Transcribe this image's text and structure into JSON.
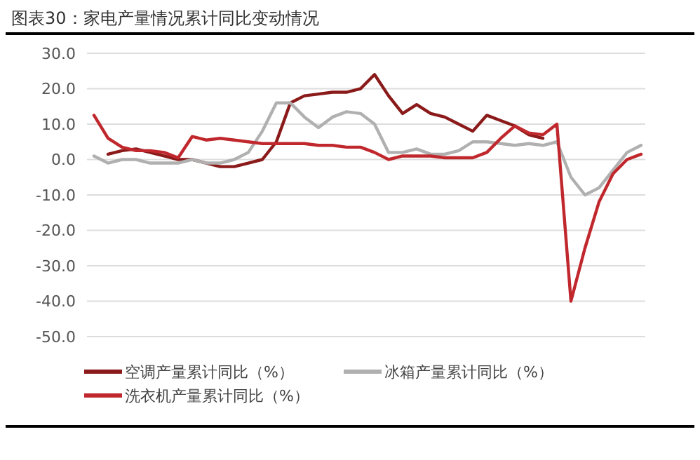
{
  "chart_data": {
    "type": "line",
    "title": "图表30：家电产量情况累计同比变动情况",
    "categories": [
      null,
      null,
      null,
      null,
      null,
      null,
      null,
      null,
      null,
      null,
      null,
      null,
      null,
      null,
      null,
      null,
      null,
      null,
      null,
      null,
      null,
      null,
      null,
      null,
      null,
      null,
      null,
      null,
      null,
      null,
      null,
      null,
      null,
      null,
      null,
      null,
      null,
      null,
      null,
      null
    ],
    "series": [
      {
        "name": "空调产量累计同比（%）",
        "color": "#8b1a1a",
        "values": [
          null,
          1.5,
          2.5,
          3,
          2,
          1,
          0,
          0,
          -1,
          -2,
          -2,
          -1,
          0,
          5,
          16,
          18,
          18.5,
          19,
          19,
          20,
          24,
          18,
          13,
          15.5,
          13,
          12,
          10,
          8,
          12.5,
          11,
          9.5,
          7,
          6,
          null,
          null,
          null,
          null,
          null,
          null,
          null
        ]
      },
      {
        "name": "冰箱产量累计同比（%）",
        "color": "#b0b0b0",
        "values": [
          1,
          -1,
          0,
          0,
          -1,
          -1,
          -1,
          0,
          -1,
          -1,
          0,
          2,
          8,
          16,
          16,
          12,
          9,
          12,
          13.5,
          13,
          10,
          2,
          2,
          3,
          1.5,
          1.5,
          2.5,
          5,
          5,
          4.5,
          4,
          4.5,
          4,
          5,
          -5,
          -10,
          -8,
          -3,
          2,
          4
        ]
      },
      {
        "name": "洗衣机产量累计同比（%）",
        "color": "#c0282d",
        "values": [
          12.5,
          6,
          3.5,
          2.5,
          2.5,
          2,
          0.5,
          6.5,
          5.5,
          6,
          5.5,
          5,
          4.5,
          4.5,
          4.5,
          4.5,
          4,
          4,
          3.5,
          3.5,
          2,
          0,
          1,
          1,
          1,
          0.5,
          0.5,
          0.5,
          2,
          6,
          9.5,
          7.5,
          7,
          10,
          -40,
          -25,
          -12,
          -4,
          0,
          1.5
        ]
      }
    ],
    "ylim": [
      -50,
      30
    ],
    "yticks": [
      {
        "value": -50,
        "label": "-50.0"
      },
      {
        "value": -40,
        "label": "-40.0"
      },
      {
        "value": -30,
        "label": "-30.0"
      },
      {
        "value": -20,
        "label": "-20.0"
      },
      {
        "value": -10,
        "label": "-10.0"
      },
      {
        "value": 0,
        "label": "0.0"
      },
      {
        "value": 10,
        "label": "10.0"
      },
      {
        "value": 20,
        "label": "20.0"
      },
      {
        "value": 30,
        "label": "30.0"
      }
    ],
    "grid": "y",
    "legend": "bottom",
    "tick_labels": "y"
  }
}
